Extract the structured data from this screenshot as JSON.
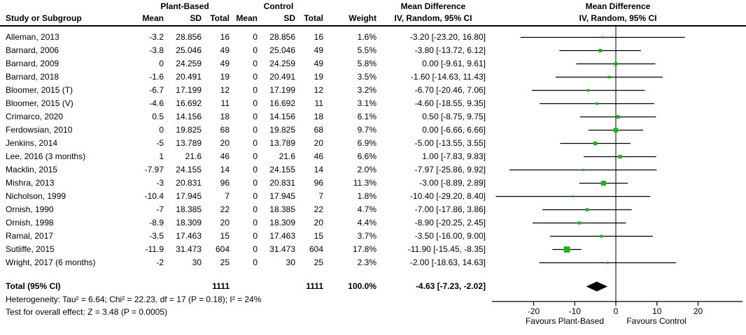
{
  "chart_data": {
    "type": "forest",
    "headers": {
      "study": "Study or Subgroup",
      "group1": "Plant-Based",
      "group2": "Control",
      "mean": "Mean",
      "sd": "SD",
      "total": "Total",
      "weight": "Weight",
      "md": "Mean Difference",
      "method": "IV, Random, 95% CI"
    },
    "studies": [
      {
        "name": "Alleman, 2013",
        "mean1": "-3.2",
        "sd1": "28.856",
        "n1": "16",
        "mean2": "0",
        "sd2": "28.856",
        "n2": "16",
        "weight": "1.6%",
        "ci_text": "-3.20 [-23.20, 16.80]",
        "md": -3.2,
        "lo": -23.2,
        "hi": 16.8,
        "w": 1.6
      },
      {
        "name": "Barnard, 2006",
        "mean1": "-3.8",
        "sd1": "25.046",
        "n1": "49",
        "mean2": "0",
        "sd2": "25.046",
        "n2": "49",
        "weight": "5.5%",
        "ci_text": "-3.80 [-13.72, 6.12]",
        "md": -3.8,
        "lo": -13.72,
        "hi": 6.12,
        "w": 5.5
      },
      {
        "name": "Barnard, 2009",
        "mean1": "0",
        "sd1": "24.259",
        "n1": "49",
        "mean2": "0",
        "sd2": "24.259",
        "n2": "49",
        "weight": "5.8%",
        "ci_text": "0.00 [-9.61, 9.61]",
        "md": 0,
        "lo": -9.61,
        "hi": 9.61,
        "w": 5.8
      },
      {
        "name": "Barnard, 2018",
        "mean1": "-1.6",
        "sd1": "20.491",
        "n1": "19",
        "mean2": "0",
        "sd2": "20.491",
        "n2": "19",
        "weight": "3.5%",
        "ci_text": "-1.60 [-14.63, 11.43]",
        "md": -1.6,
        "lo": -14.63,
        "hi": 11.43,
        "w": 3.5
      },
      {
        "name": "Bloomer, 2015 (T)",
        "mean1": "-6.7",
        "sd1": "17.199",
        "n1": "12",
        "mean2": "0",
        "sd2": "17.199",
        "n2": "12",
        "weight": "3.2%",
        "ci_text": "-6.70 [-20.46, 7.06]",
        "md": -6.7,
        "lo": -20.46,
        "hi": 7.06,
        "w": 3.2
      },
      {
        "name": "Bloomer, 2015 (V)",
        "mean1": "-4.6",
        "sd1": "16.692",
        "n1": "11",
        "mean2": "0",
        "sd2": "16.692",
        "n2": "11",
        "weight": "3.1%",
        "ci_text": "-4.60 [-18.55, 9.35]",
        "md": -4.6,
        "lo": -18.55,
        "hi": 9.35,
        "w": 3.1
      },
      {
        "name": "Crimarco, 2020",
        "mean1": "0.5",
        "sd1": "14.156",
        "n1": "18",
        "mean2": "0",
        "sd2": "14.156",
        "n2": "18",
        "weight": "6.1%",
        "ci_text": "0.50 [-8.75, 9.75]",
        "md": 0.5,
        "lo": -8.75,
        "hi": 9.75,
        "w": 6.1
      },
      {
        "name": "Ferdowsian, 2010",
        "mean1": "0",
        "sd1": "19.825",
        "n1": "68",
        "mean2": "0",
        "sd2": "19.825",
        "n2": "68",
        "weight": "9.7%",
        "ci_text": "0.00 [-6.66, 6.66]",
        "md": 0,
        "lo": -6.66,
        "hi": 6.66,
        "w": 9.7
      },
      {
        "name": "Jenkins, 2014",
        "mean1": "-5",
        "sd1": "13.789",
        "n1": "20",
        "mean2": "0",
        "sd2": "13.789",
        "n2": "20",
        "weight": "6.9%",
        "ci_text": "-5.00 [-13.55, 3.55]",
        "md": -5,
        "lo": -13.55,
        "hi": 3.55,
        "w": 6.9
      },
      {
        "name": "Lee, 2016 (3 months)",
        "mean1": "1",
        "sd1": "21.6",
        "n1": "46",
        "mean2": "0",
        "sd2": "21.6",
        "n2": "46",
        "weight": "6.6%",
        "ci_text": "1.00 [-7.83, 9.83]",
        "md": 1,
        "lo": -7.83,
        "hi": 9.83,
        "w": 6.6
      },
      {
        "name": "Macklin, 2015",
        "mean1": "-7.97",
        "sd1": "24.155",
        "n1": "14",
        "mean2": "0",
        "sd2": "24.155",
        "n2": "14",
        "weight": "2.0%",
        "ci_text": "-7.97 [-25.86, 9.92]",
        "md": -7.97,
        "lo": -25.86,
        "hi": 9.92,
        "w": 2.0
      },
      {
        "name": "Mishra, 2013",
        "mean1": "-3",
        "sd1": "20.831",
        "n1": "96",
        "mean2": "0",
        "sd2": "20.831",
        "n2": "96",
        "weight": "11.3%",
        "ci_text": "-3.00 [-8.89, 2.89]",
        "md": -3,
        "lo": -8.89,
        "hi": 2.89,
        "w": 11.3
      },
      {
        "name": "Nicholson, 1999",
        "mean1": "-10.4",
        "sd1": "17.945",
        "n1": "7",
        "mean2": "0",
        "sd2": "17.945",
        "n2": "7",
        "weight": "1.8%",
        "ci_text": "-10.40 [-29.20, 8.40]",
        "md": -10.4,
        "lo": -29.2,
        "hi": 8.4,
        "w": 1.8
      },
      {
        "name": "Ornish, 1990",
        "mean1": "-7",
        "sd1": "18.385",
        "n1": "22",
        "mean2": "0",
        "sd2": "18.385",
        "n2": "22",
        "weight": "4.7%",
        "ci_text": "-7.00 [-17.86, 3.86]",
        "md": -7,
        "lo": -17.86,
        "hi": 3.86,
        "w": 4.7
      },
      {
        "name": "Ornish, 1998",
        "mean1": "-8.9",
        "sd1": "18.309",
        "n1": "20",
        "mean2": "0",
        "sd2": "18.309",
        "n2": "20",
        "weight": "4.4%",
        "ci_text": "-8.90 [-20.25, 2.45]",
        "md": -8.9,
        "lo": -20.25,
        "hi": 2.45,
        "w": 4.4
      },
      {
        "name": "Ramal, 2017",
        "mean1": "-3.5",
        "sd1": "17.463",
        "n1": "15",
        "mean2": "0",
        "sd2": "17.463",
        "n2": "15",
        "weight": "3.7%",
        "ci_text": "-3.50 [-16.00, 9.00]",
        "md": -3.5,
        "lo": -16.0,
        "hi": 9.0,
        "w": 3.7
      },
      {
        "name": "Sutliffe, 2015",
        "mean1": "-11.9",
        "sd1": "31.473",
        "n1": "604",
        "mean2": "0",
        "sd2": "31.473",
        "n2": "604",
        "weight": "17.8%",
        "ci_text": "-11.90 [-15.45, -8.35]",
        "md": -11.9,
        "lo": -15.45,
        "hi": -8.35,
        "w": 17.8
      },
      {
        "name": "Wright, 2017 (6 months)",
        "mean1": "-2",
        "sd1": "30",
        "n1": "25",
        "mean2": "0",
        "sd2": "30",
        "n2": "25",
        "weight": "2.3%",
        "ci_text": "-2.00 [-18.63, 14.63]",
        "md": -2,
        "lo": -18.63,
        "hi": 14.63,
        "w": 2.3
      }
    ],
    "total": {
      "label": "Total (95% CI)",
      "n1": "1111",
      "n2": "1111",
      "weight": "100.0%",
      "ci_text": "-4.63 [-7.23, -2.02]",
      "md": -4.63,
      "lo": -7.23,
      "hi": -2.02
    },
    "footnotes": [
      "Heterogeneity: Tau² = 6.64; Chi² = 22.23, df = 17 (P = 0.18); I² = 24%",
      "Test for overall effect: Z = 3.48 (P = 0.0005)"
    ],
    "axis": {
      "ticks": [
        "-20",
        "-10",
        "0",
        "10",
        "20"
      ],
      "tick_values": [
        -20,
        -10,
        0,
        10,
        20
      ],
      "min": -30,
      "max": 30,
      "favours_left": "Favours Plant-Based",
      "favours_right": "Favours Control"
    },
    "colors": {
      "square": "#1eb41e",
      "diamond": "#000000",
      "zero_line": "#808080",
      "ci_line": "#000000",
      "axis": "#000000"
    }
  }
}
